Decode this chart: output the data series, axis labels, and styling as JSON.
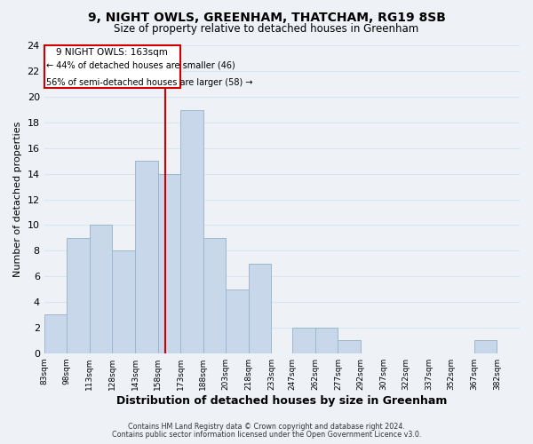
{
  "title": "9, NIGHT OWLS, GREENHAM, THATCHAM, RG19 8SB",
  "subtitle": "Size of property relative to detached houses in Greenham",
  "xlabel": "Distribution of detached houses by size in Greenham",
  "ylabel": "Number of detached properties",
  "footnote1": "Contains HM Land Registry data © Crown copyright and database right 2024.",
  "footnote2": "Contains public sector information licensed under the Open Government Licence v3.0.",
  "bar_color": "#c8d8ea",
  "bar_edge_color": "#9ab8d0",
  "vline_color": "#cc0000",
  "vline_x": 163,
  "annotation_text1": "9 NIGHT OWLS: 163sqm",
  "annotation_text2": "← 44% of detached houses are smaller (46)",
  "annotation_text3": "56% of semi-detached houses are larger (58) →",
  "annotation_box_edge": "#cc0000",
  "bins_left": [
    83,
    98,
    113,
    128,
    143,
    158,
    173,
    188,
    203,
    218,
    233,
    247,
    262,
    277,
    292,
    307,
    322,
    337,
    352,
    367
  ],
  "bin_width": 15,
  "counts": [
    3,
    9,
    10,
    8,
    15,
    14,
    19,
    9,
    5,
    7,
    0,
    2,
    2,
    1,
    0,
    0,
    0,
    0,
    0,
    1
  ],
  "xlim_left": 83,
  "xlim_right": 397,
  "ylim_top": 24,
  "yticks": [
    0,
    2,
    4,
    6,
    8,
    10,
    12,
    14,
    16,
    18,
    20,
    22,
    24
  ],
  "xtick_positions": [
    83,
    98,
    113,
    128,
    143,
    158,
    173,
    188,
    203,
    218,
    233,
    247,
    262,
    277,
    292,
    307,
    322,
    337,
    352,
    367,
    382
  ],
  "xtick_labels": [
    "83sqm",
    "98sqm",
    "113sqm",
    "128sqm",
    "143sqm",
    "158sqm",
    "173sqm",
    "188sqm",
    "203sqm",
    "218sqm",
    "233sqm",
    "247sqm",
    "262sqm",
    "277sqm",
    "292sqm",
    "307sqm",
    "322sqm",
    "337sqm",
    "352sqm",
    "367sqm",
    "382sqm"
  ],
  "grid_color": "#d8e4ee",
  "background_color": "#eef2f7",
  "plot_bg_color": "#eef2f7"
}
